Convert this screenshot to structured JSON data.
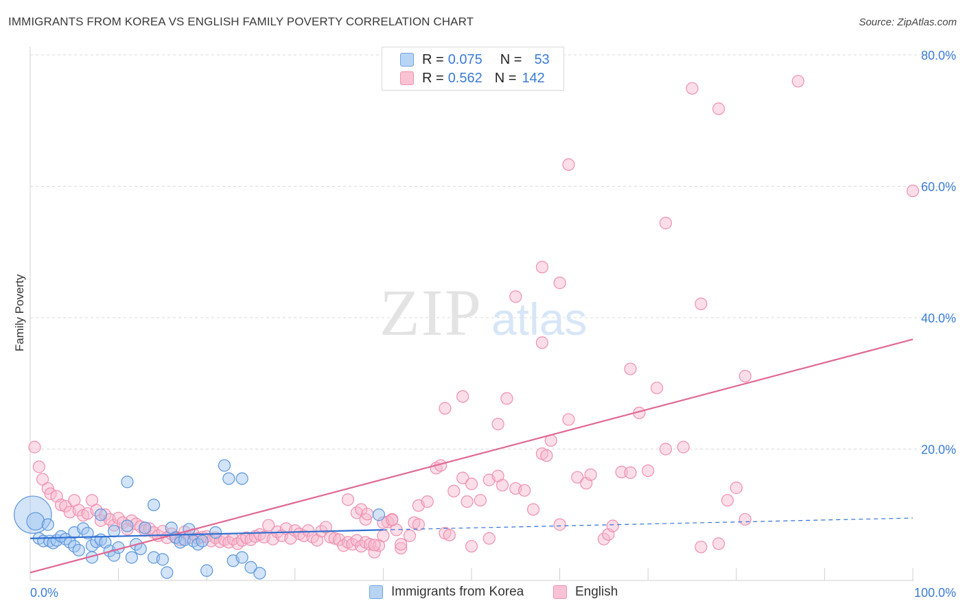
{
  "title": "IMMIGRANTS FROM KOREA VS ENGLISH FAMILY POVERTY CORRELATION CHART",
  "source": "Source: ZipAtlas.com",
  "watermark": {
    "zip": "ZIP",
    "atlas": "atlas"
  },
  "legend": {
    "rows": [
      {
        "r_label": "R =",
        "r_value": "0.075",
        "n_label": "N =",
        "n_value": "53"
      },
      {
        "r_label": "R =",
        "r_value": "0.562",
        "n_label": "N =",
        "n_value": "142"
      }
    ]
  },
  "bottom_legend": [
    "Immigrants from Korea",
    "English"
  ],
  "colors": {
    "korea_fill": "#9ec3f0",
    "korea_stroke": "#5b95dc",
    "korea_line": "#2f6fd0",
    "english_fill": "#f7b6cb",
    "english_stroke": "#ef8fae",
    "english_line": "#e06794",
    "axis_label": "#3a7bd5",
    "grid": "#d9d9d9"
  },
  "chart_data": {
    "type": "scatter",
    "title": "IMMIGRANTS FROM KOREA VS ENGLISH FAMILY POVERTY CORRELATION CHART",
    "xlabel": "",
    "ylabel": "Family Poverty",
    "xlim": [
      0,
      100
    ],
    "ylim": [
      0,
      80
    ],
    "x_tick_labels": [
      "0.0%",
      "100.0%"
    ],
    "y_ticks": [
      20,
      40,
      60,
      80
    ],
    "y_tick_labels": [
      "20.0%",
      "40.0%",
      "60.0%",
      "80.0%"
    ],
    "grid": true,
    "series": [
      {
        "name": "Immigrants from Korea",
        "R": 0.075,
        "N": 53,
        "trend": {
          "x": [
            0,
            40
          ],
          "y": [
            6.4,
            7.7
          ],
          "dashed_to": [
            100,
            9.5
          ]
        },
        "points": [
          [
            0.3,
            10,
            3.2
          ],
          [
            0.6,
            9,
            1.5
          ],
          [
            1,
            6.4,
            1
          ],
          [
            1.5,
            6,
            1
          ],
          [
            2,
            8.5,
            1
          ],
          [
            2.2,
            6,
            1
          ],
          [
            2.6,
            5.7,
            1
          ],
          [
            3,
            6.1,
            1
          ],
          [
            3.5,
            6.7,
            1
          ],
          [
            4,
            6.3,
            1
          ],
          [
            4.5,
            5.8,
            1
          ],
          [
            5,
            5.2,
            1
          ],
          [
            5.5,
            4.6,
            1
          ],
          [
            5,
            7.3,
            1
          ],
          [
            6,
            7.9,
            1
          ],
          [
            6.5,
            7.2,
            1
          ],
          [
            7,
            5.3,
            1
          ],
          [
            7.5,
            5.9,
            1
          ],
          [
            8,
            6.2,
            1
          ],
          [
            8.5,
            5.8,
            1
          ],
          [
            7,
            3.5,
            1
          ],
          [
            8,
            10,
            1
          ],
          [
            9,
            4.5,
            1
          ],
          [
            9.5,
            3.8,
            1
          ],
          [
            9.5,
            7.5,
            1
          ],
          [
            10,
            5,
            1
          ],
          [
            11,
            8.3,
            1
          ],
          [
            11,
            15,
            1
          ],
          [
            11.5,
            3.5,
            1
          ],
          [
            12,
            5.5,
            1
          ],
          [
            12.5,
            4.8,
            1
          ],
          [
            13,
            8,
            1
          ],
          [
            14,
            11.5,
            1
          ],
          [
            14,
            3.5,
            1
          ],
          [
            15,
            3.2,
            1
          ],
          [
            15.5,
            1.2,
            1
          ],
          [
            16,
            8,
            1
          ],
          [
            16.5,
            6.5,
            1
          ],
          [
            17,
            5.8,
            1
          ],
          [
            17.5,
            6.2,
            1
          ],
          [
            18,
            7.8,
            1
          ],
          [
            18.5,
            6,
            1
          ],
          [
            19,
            5.5,
            1
          ],
          [
            19.5,
            6,
            1
          ],
          [
            20,
            1.5,
            1
          ],
          [
            21,
            7.3,
            1
          ],
          [
            22,
            17.5,
            1
          ],
          [
            22.5,
            15.5,
            1
          ],
          [
            23,
            3,
            1
          ],
          [
            24,
            3.5,
            1
          ],
          [
            24,
            15.5,
            1
          ],
          [
            25,
            2,
            1
          ],
          [
            26,
            1.1,
            1
          ],
          [
            39.5,
            10,
            1
          ]
        ]
      },
      {
        "name": "English",
        "R": 0.562,
        "N": 142,
        "trend": {
          "x": [
            0,
            100
          ],
          "y": [
            1.2,
            36.7
          ]
        },
        "points": [
          [
            0.5,
            20.3
          ],
          [
            1,
            17.3
          ],
          [
            1.4,
            15.4
          ],
          [
            2,
            14
          ],
          [
            2.3,
            13.2
          ],
          [
            3,
            12.8
          ],
          [
            3.5,
            11.5
          ],
          [
            4,
            11.3
          ],
          [
            4.5,
            10.4
          ],
          [
            5,
            12.2
          ],
          [
            5.5,
            10.7
          ],
          [
            6,
            9.9
          ],
          [
            6.5,
            10.2
          ],
          [
            7,
            12.2
          ],
          [
            7.5,
            10.7
          ],
          [
            8,
            9.1
          ],
          [
            8.5,
            10
          ],
          [
            9,
            9.3
          ],
          [
            9.5,
            8.4
          ],
          [
            10,
            9.5
          ],
          [
            10.5,
            8.8
          ],
          [
            11,
            7.8
          ],
          [
            11.5,
            9.1
          ],
          [
            12,
            8.6
          ],
          [
            12.5,
            8.2
          ],
          [
            13,
            7.6
          ],
          [
            13.5,
            7.9
          ],
          [
            14,
            7.3
          ],
          [
            14.5,
            6.8
          ],
          [
            15,
            7.5
          ],
          [
            15.5,
            6.5
          ],
          [
            16,
            7.1
          ],
          [
            16.5,
            6.6
          ],
          [
            17,
            6.2
          ],
          [
            17.5,
            7.4
          ],
          [
            18,
            6.5
          ],
          [
            18.5,
            7
          ],
          [
            19,
            6.4
          ],
          [
            19.5,
            6.6
          ],
          [
            20,
            6.7
          ],
          [
            20.5,
            6
          ],
          [
            21,
            6.5
          ],
          [
            21.5,
            5.9
          ],
          [
            22,
            6.2
          ],
          [
            22.5,
            5.8
          ],
          [
            23,
            6.3
          ],
          [
            23.5,
            5.6
          ],
          [
            24,
            6.1
          ],
          [
            24.5,
            6.5
          ],
          [
            25,
            6.2
          ],
          [
            25.5,
            6.7
          ],
          [
            26,
            7
          ],
          [
            26.5,
            6.6
          ],
          [
            27,
            8.4
          ],
          [
            27.5,
            6.3
          ],
          [
            28,
            7.4
          ],
          [
            28.5,
            6.8
          ],
          [
            29,
            7.9
          ],
          [
            29.5,
            6.4
          ],
          [
            30,
            7.6
          ],
          [
            30.5,
            7.1
          ],
          [
            31,
            6.8
          ],
          [
            31.5,
            7.6
          ],
          [
            32,
            6.6
          ],
          [
            32.5,
            6.1
          ],
          [
            33,
            7.5
          ],
          [
            33.5,
            8.1
          ],
          [
            34,
            6.6
          ],
          [
            34.5,
            6.4
          ],
          [
            35,
            6.2
          ],
          [
            35.5,
            5.3
          ],
          [
            36,
            5.8
          ],
          [
            36.5,
            5.5
          ],
          [
            37,
            6.1
          ],
          [
            37.5,
            5.2
          ],
          [
            38,
            5.8
          ],
          [
            38.5,
            5.5
          ],
          [
            39,
            4.3
          ],
          [
            39.5,
            5.3
          ],
          [
            40,
            6.8
          ],
          [
            40.5,
            8.9
          ],
          [
            41,
            9.3
          ],
          [
            41.5,
            7.7
          ],
          [
            42,
            4.9
          ],
          [
            36,
            12.3
          ],
          [
            37,
            10.3
          ],
          [
            37.5,
            10.8
          ],
          [
            38,
            9.3
          ],
          [
            38.2,
            10.1
          ],
          [
            39,
            5.4
          ],
          [
            40,
            8.8
          ],
          [
            41,
            9.2
          ],
          [
            42,
            5.5
          ],
          [
            43,
            6.8
          ],
          [
            43.5,
            8.8
          ],
          [
            44,
            11.4
          ],
          [
            45,
            12
          ],
          [
            47,
            7.2
          ],
          [
            47.5,
            6.9
          ],
          [
            46,
            17.1
          ],
          [
            46.5,
            17.5
          ],
          [
            48,
            13.6
          ],
          [
            49,
            15.6
          ],
          [
            49.5,
            12
          ],
          [
            50,
            14.7
          ],
          [
            51,
            12.2
          ],
          [
            52,
            15.3
          ],
          [
            52,
            6.4
          ],
          [
            53,
            15.9
          ],
          [
            53.5,
            14.5
          ],
          [
            55,
            14
          ],
          [
            56,
            13.7
          ],
          [
            57,
            10.8
          ],
          [
            58,
            19.3
          ],
          [
            58.5,
            19
          ],
          [
            59,
            21.3
          ],
          [
            60,
            8.5
          ],
          [
            61,
            24.5
          ],
          [
            62,
            15.7
          ],
          [
            63,
            14.8
          ],
          [
            63.5,
            16.1
          ],
          [
            65,
            6.3
          ],
          [
            65.5,
            7
          ],
          [
            66,
            8.3
          ],
          [
            67,
            16.5
          ],
          [
            68,
            16.4
          ],
          [
            69,
            25.5
          ],
          [
            70,
            16.7
          ],
          [
            71,
            29.3
          ],
          [
            72,
            20
          ],
          [
            74,
            20.3
          ],
          [
            76,
            5.1
          ],
          [
            78,
            5.6
          ],
          [
            79,
            12.2
          ],
          [
            80,
            14.1
          ],
          [
            81,
            9.3
          ],
          [
            47,
            26.2
          ],
          [
            49,
            28
          ],
          [
            53,
            23.8
          ],
          [
            54,
            27.7
          ],
          [
            55,
            43.2
          ],
          [
            58,
            47.7
          ],
          [
            58,
            36.2
          ],
          [
            60,
            45.3
          ],
          [
            61,
            63.3
          ],
          [
            68,
            32.2
          ],
          [
            72,
            54.4
          ],
          [
            75,
            74.9
          ],
          [
            76,
            42.1
          ],
          [
            78,
            71.8
          ],
          [
            81,
            31.1
          ],
          [
            87,
            76
          ],
          [
            100,
            59.3
          ],
          [
            44,
            8.5
          ],
          [
            50,
            5.2
          ]
        ]
      }
    ]
  }
}
